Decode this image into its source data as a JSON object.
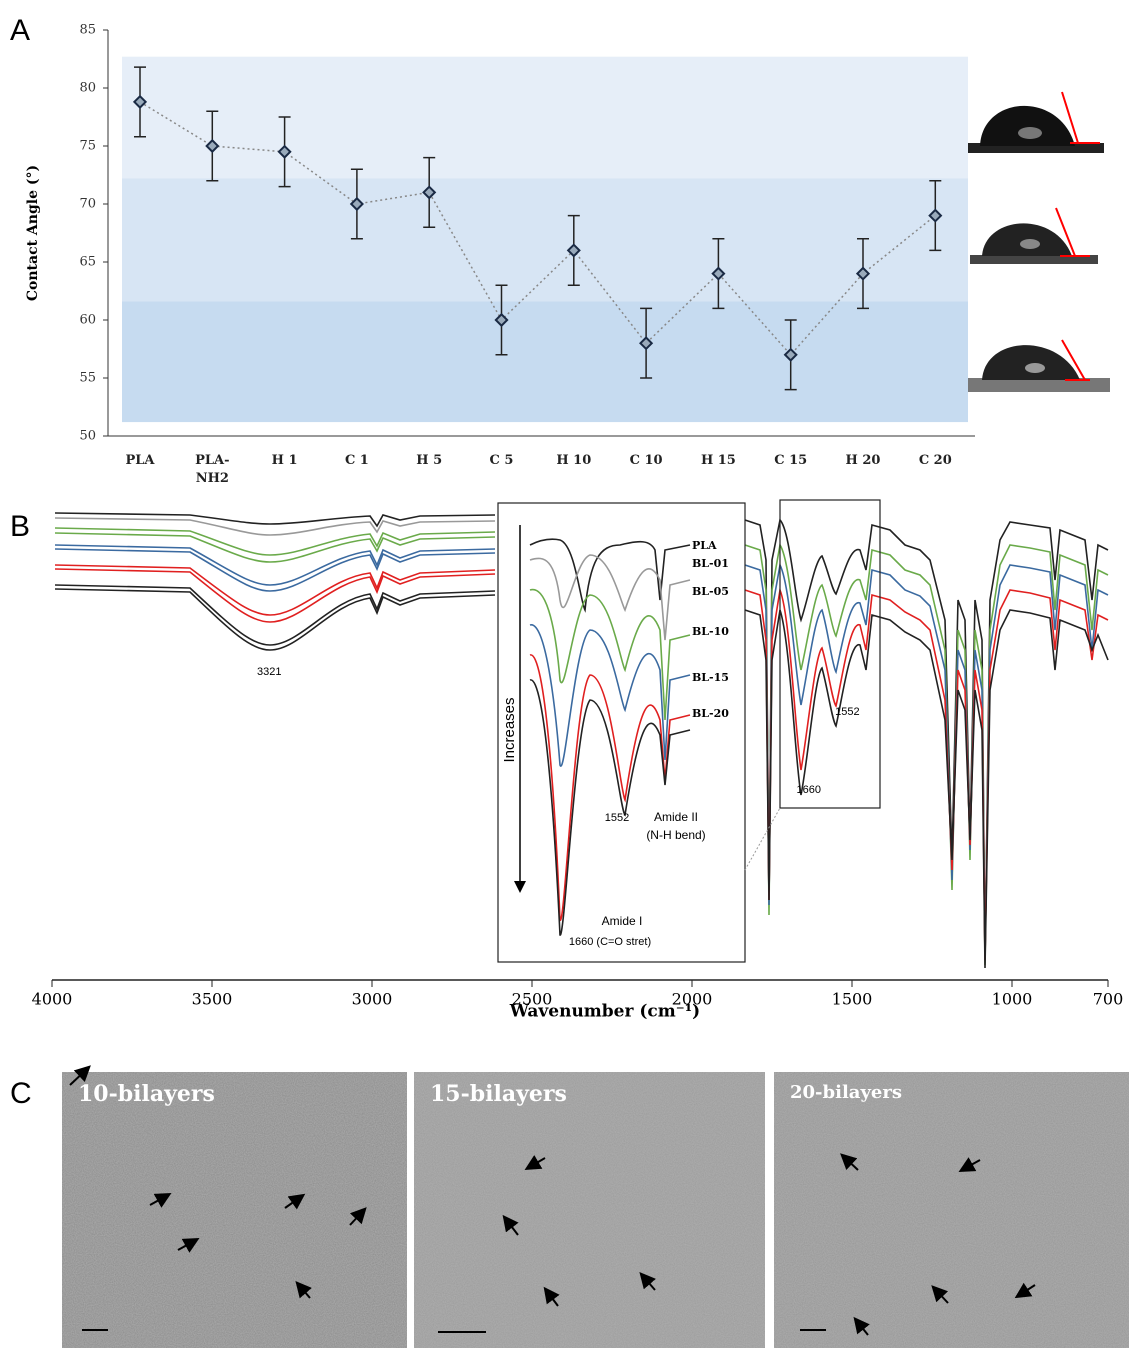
{
  "chart_data": [
    {
      "type": "errorline",
      "panel": "A",
      "ylabel": "Contact Angle (°)",
      "categories": [
        "PLA",
        "PLA-\nNH2",
        "H 1",
        "C 1",
        "H 5",
        "C 5",
        "H 10",
        "C 10",
        "H 15",
        "C 15",
        "H 20",
        "C 20"
      ],
      "values": [
        78.8,
        75,
        74.5,
        70,
        71,
        60,
        66,
        58,
        64,
        57,
        64,
        69
      ],
      "errors": [
        3,
        3,
        3,
        3,
        3,
        3,
        3,
        3,
        3,
        3,
        3,
        3
      ],
      "color": "#1a2a44",
      "ylim": [
        50,
        85
      ],
      "yticks": [
        50,
        55,
        60,
        65,
        70,
        75,
        80,
        85
      ],
      "bands": [
        {
          "range": [
            72.2,
            82.7
          ],
          "color": "#e6eef8"
        },
        {
          "range": [
            61.6,
            72.2
          ],
          "color": "#d7e5f4"
        },
        {
          "range": [
            51.2,
            61.6
          ],
          "color": "#c6dbf0"
        }
      ]
    },
    {
      "type": "spectra",
      "panel": "B",
      "xlabel": "Wavenumber (cm⁻¹)",
      "xlim": [
        4000,
        700
      ],
      "xticks": [
        4000,
        3500,
        3000,
        2500,
        2000,
        1500,
        1000,
        700
      ],
      "annotations": [
        {
          "text": "3321",
          "x": 3321
        },
        {
          "text": "1552",
          "x": 1552
        },
        {
          "text": "1660",
          "x": 1660
        }
      ],
      "inset_labels": [
        "PLA",
        "BL-01",
        "BL-05",
        "BL-10",
        "BL-15",
        "BL-20"
      ],
      "inset_notes": [
        "Increases",
        "1552",
        "Amide II",
        "(N-H bend)",
        "Amide I",
        "1660 (C=O stret)"
      ]
    },
    {
      "type": "images",
      "panel": "C",
      "labels": [
        "10-bilayers",
        "15-bilayers",
        "20-bilayers"
      ]
    }
  ]
}
